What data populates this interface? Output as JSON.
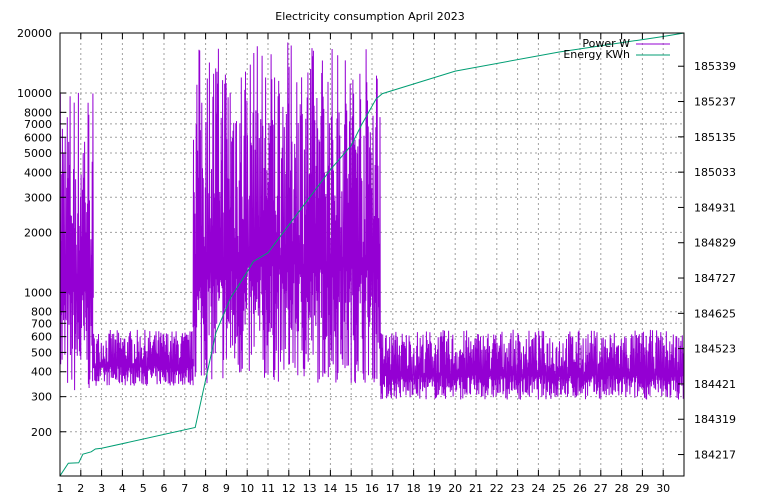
{
  "chart_data": {
    "type": "line",
    "title": "Electricity consumption April 2023",
    "x": {
      "range": [
        1,
        31
      ],
      "ticks": [
        1,
        2,
        3,
        4,
        5,
        6,
        7,
        8,
        9,
        10,
        11,
        12,
        13,
        14,
        15,
        16,
        17,
        18,
        19,
        20,
        21,
        22,
        23,
        24,
        25,
        26,
        27,
        28,
        29,
        30
      ],
      "tick_labels": [
        "1",
        "2",
        "3",
        "4",
        "5",
        "6",
        "7",
        "8",
        "9",
        "10",
        "11",
        "12",
        "13",
        "14",
        "15",
        "16",
        "17",
        "18",
        "19",
        "20",
        "21",
        "22",
        "23",
        "24",
        "25",
        "26",
        "27",
        "28",
        "29",
        "30"
      ]
    },
    "y_left": {
      "scale": "log",
      "range": [
        120,
        20000
      ],
      "ticks": [
        200,
        300,
        400,
        500,
        600,
        700,
        800,
        1000,
        2000,
        3000,
        4000,
        5000,
        6000,
        7000,
        8000,
        10000,
        20000
      ],
      "tick_labels": [
        "200",
        "300",
        "400",
        "500",
        "600",
        "700",
        "800",
        "1000",
        "2000",
        "3000",
        "4000",
        "5000",
        "6000",
        "7000",
        "8000",
        "10000",
        "20000"
      ]
    },
    "y_right": {
      "scale": "linear",
      "range": [
        184155,
        185435
      ],
      "ticks": [
        184217,
        184319,
        184421,
        184523,
        184625,
        184727,
        184829,
        184931,
        185033,
        185135,
        185237,
        185339
      ],
      "tick_labels": [
        "184217",
        "184319",
        "184421",
        "184523",
        "184625",
        "184727",
        "184829",
        "184931",
        "185033",
        "185135",
        "185237",
        "185339"
      ]
    },
    "grid": true,
    "legend": "top-right",
    "series": [
      {
        "name": "Power W",
        "axis": "left",
        "color": "#9400d3",
        "segments": [
          {
            "x": [
              1.0,
              2.6
            ],
            "low": 300,
            "high": 12000
          },
          {
            "x": [
              2.6,
              7.4
            ],
            "low": 340,
            "high": 650
          },
          {
            "x": [
              7.4,
              16.4
            ],
            "low": 350,
            "high": 18000
          },
          {
            "x": [
              16.4,
              31.0
            ],
            "low": 290,
            "high": 650
          }
        ]
      },
      {
        "name": "Energy KWh",
        "axis": "right",
        "color": "#009e73",
        "x": [
          1.0,
          1.05,
          1.4,
          1.9,
          2.1,
          2.5,
          2.7,
          3.0,
          7.5,
          8.5,
          9.2,
          10.0,
          10.3,
          11.0,
          12.0,
          13.0,
          14.0,
          15.0,
          15.5,
          16.2,
          16.5,
          20.0,
          25.0,
          30.0,
          31.0
        ],
        "y": [
          184155,
          184160,
          184192,
          184193,
          184218,
          184225,
          184233,
          184235,
          184295,
          184570,
          184670,
          184745,
          184775,
          184800,
          184880,
          184960,
          185040,
          185110,
          185170,
          185245,
          185260,
          185325,
          185380,
          185425,
          185435
        ]
      }
    ]
  }
}
